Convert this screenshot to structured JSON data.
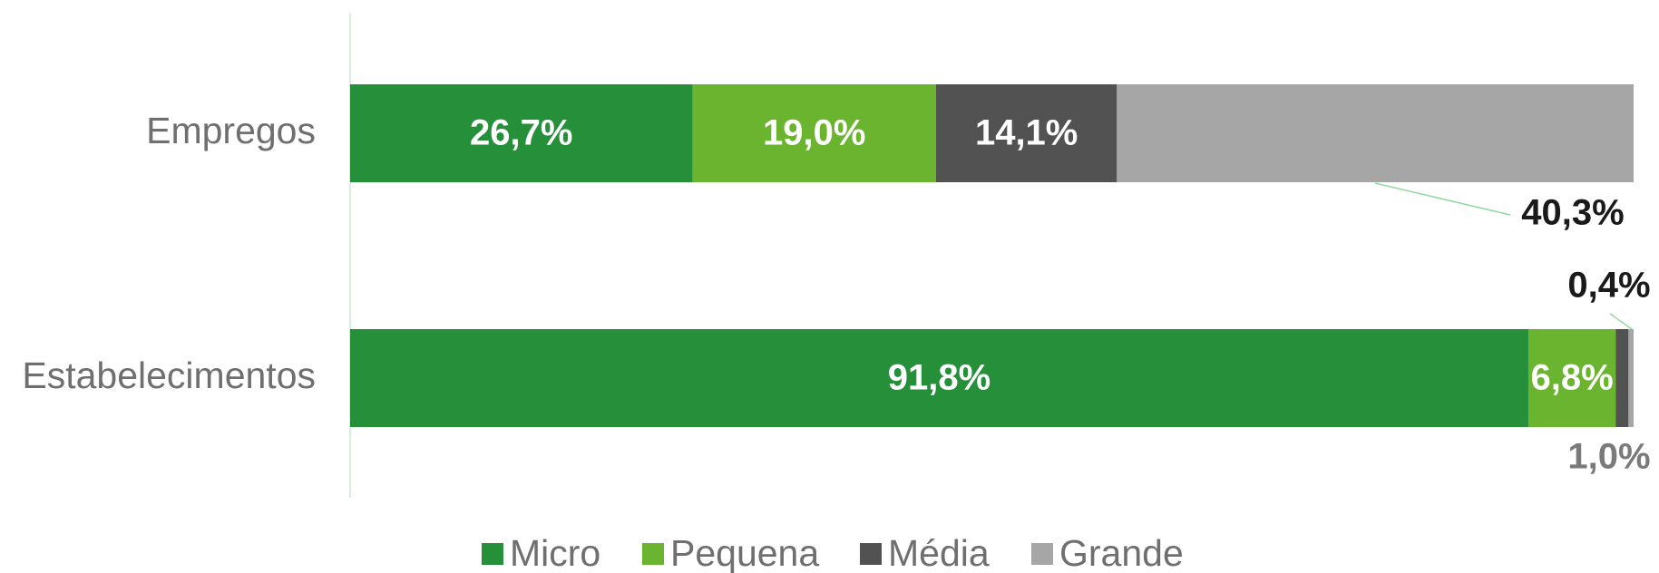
{
  "chart_data": {
    "type": "stacked_bar_horizontal",
    "categories": [
      "Empregos",
      "Estabelecimentos"
    ],
    "series": [
      {
        "name": "Micro",
        "color": "#258f3a",
        "values": [
          26.7,
          91.8
        ],
        "value_labels": [
          "26,7%",
          "91,8%"
        ]
      },
      {
        "name": "Pequena",
        "color": "#6ab42f",
        "values": [
          19.0,
          6.8
        ],
        "value_labels": [
          "19,0%",
          "6,8%"
        ]
      },
      {
        "name": "Média",
        "color": "#525252",
        "values": [
          14.1,
          1.0
        ],
        "value_labels": [
          "14,1%",
          "1,0%"
        ]
      },
      {
        "name": "Grande",
        "color": "#a6a6a6",
        "values": [
          40.3,
          0.4
        ],
        "value_labels": [
          "40,3%",
          "0,4%"
        ]
      }
    ],
    "legend": "bottom"
  }
}
